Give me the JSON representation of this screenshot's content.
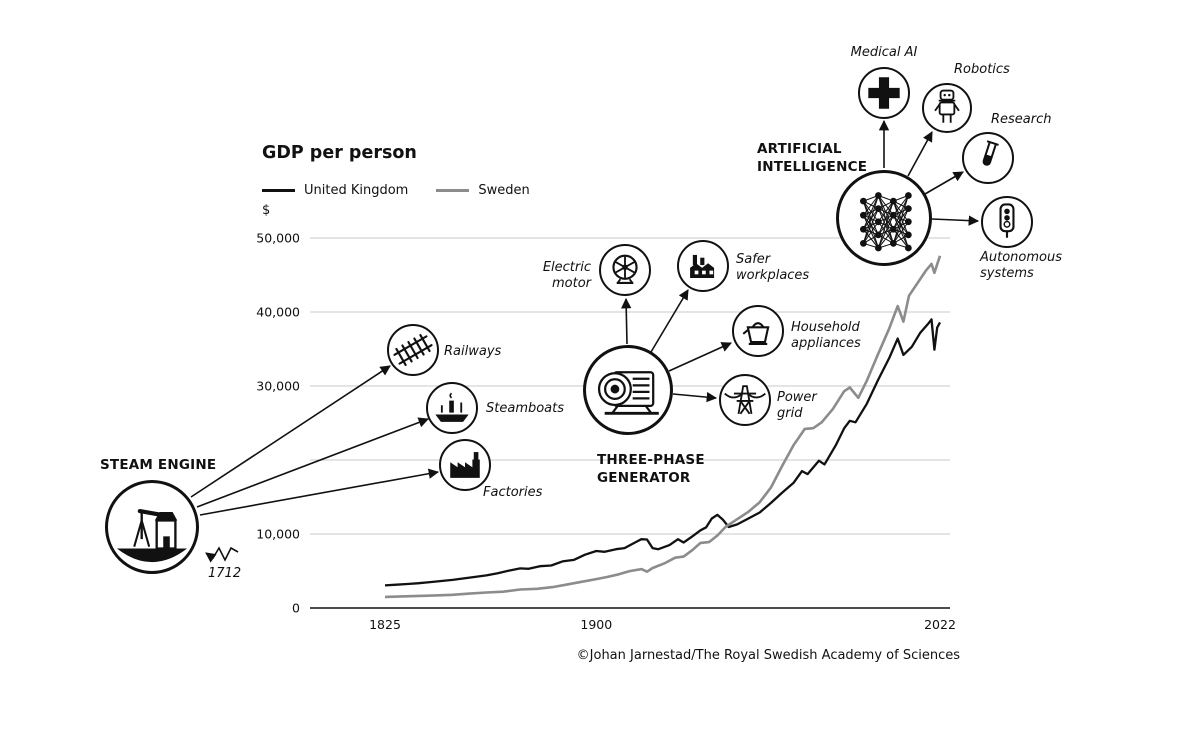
{
  "title": "GDP per person",
  "currency_label": "$",
  "footer": "©Johan Jarnestad/The Royal Swedish Academy of Sciences",
  "legend": [
    {
      "label": "United Kingdom",
      "color": "#111111"
    },
    {
      "label": "Sweden",
      "color": "#8c8c8c"
    }
  ],
  "annotations": {
    "steam_engine": {
      "title": "STEAM ENGINE",
      "year": "1712",
      "railways": "Railways",
      "steamboats": "Steamboats",
      "factories": "Factories"
    },
    "generator": {
      "title": "THREE-PHASE\nGENERATOR",
      "electric_motor": "Electric\nmotor",
      "safer_workplaces": "Safer\nworkplaces",
      "household_appliances": "Household\nappliances",
      "power_grid": "Power\ngrid"
    },
    "ai": {
      "title": "ARTIFICIAL\nINTELLIGENCE",
      "medical_ai": "Medical AI",
      "robotics": "Robotics",
      "research": "Research",
      "autonomous_systems": "Autonomous\nsystems"
    }
  },
  "icons": [
    "steam-engine-icon",
    "railways-icon",
    "steamboats-icon",
    "factories-icon",
    "three-phase-generator-icon",
    "electric-motor-icon",
    "safer-workplaces-icon",
    "household-appliances-icon",
    "power-grid-icon",
    "ai-network-icon",
    "medical-ai-icon",
    "robotics-icon",
    "research-icon",
    "autonomous-systems-icon"
  ],
  "chart_data": {
    "type": "line",
    "title": "GDP per person",
    "ylabel": "$",
    "grid": true,
    "legend_position": "top-left",
    "xlim": [
      1825,
      2022
    ],
    "ylim": [
      0,
      50000
    ],
    "x_ticks": [
      1825,
      1900,
      2022
    ],
    "y_ticks": [
      0,
      10000,
      20000,
      30000,
      40000,
      50000
    ],
    "y_tick_labels": [
      "0",
      "10,000",
      "",
      "30,000",
      "40,000",
      "50,000"
    ],
    "series": [
      {
        "name": "United Kingdom",
        "color": "#111111",
        "points": [
          [
            1825,
            3050
          ],
          [
            1829,
            3150
          ],
          [
            1833,
            3250
          ],
          [
            1837,
            3350
          ],
          [
            1841,
            3500
          ],
          [
            1845,
            3650
          ],
          [
            1849,
            3800
          ],
          [
            1853,
            4000
          ],
          [
            1857,
            4200
          ],
          [
            1861,
            4400
          ],
          [
            1865,
            4700
          ],
          [
            1869,
            5050
          ],
          [
            1873,
            5350
          ],
          [
            1876,
            5300
          ],
          [
            1880,
            5650
          ],
          [
            1884,
            5750
          ],
          [
            1888,
            6300
          ],
          [
            1892,
            6500
          ],
          [
            1896,
            7200
          ],
          [
            1900,
            7700
          ],
          [
            1903,
            7600
          ],
          [
            1907,
            7950
          ],
          [
            1910,
            8100
          ],
          [
            1913,
            8700
          ],
          [
            1916,
            9300
          ],
          [
            1918,
            9250
          ],
          [
            1920,
            8100
          ],
          [
            1922,
            7950
          ],
          [
            1926,
            8500
          ],
          [
            1929,
            9300
          ],
          [
            1931,
            8850
          ],
          [
            1934,
            9650
          ],
          [
            1937,
            10500
          ],
          [
            1939,
            10900
          ],
          [
            1941,
            12100
          ],
          [
            1943,
            12600
          ],
          [
            1945,
            11900
          ],
          [
            1947,
            10950
          ],
          [
            1950,
            11300
          ],
          [
            1954,
            12100
          ],
          [
            1958,
            12900
          ],
          [
            1962,
            14200
          ],
          [
            1966,
            15600
          ],
          [
            1970,
            16900
          ],
          [
            1973,
            18500
          ],
          [
            1975,
            18100
          ],
          [
            1979,
            19900
          ],
          [
            1981,
            19400
          ],
          [
            1985,
            22000
          ],
          [
            1988,
            24300
          ],
          [
            1990,
            25300
          ],
          [
            1992,
            25100
          ],
          [
            1996,
            27600
          ],
          [
            2000,
            30800
          ],
          [
            2004,
            33800
          ],
          [
            2007,
            36400
          ],
          [
            2009,
            34200
          ],
          [
            2012,
            35300
          ],
          [
            2015,
            37200
          ],
          [
            2018,
            38500
          ],
          [
            2019,
            39000
          ],
          [
            2020,
            34900
          ],
          [
            2021,
            37900
          ],
          [
            2022,
            38600
          ]
        ]
      },
      {
        "name": "Sweden",
        "color": "#8c8c8c",
        "points": [
          [
            1825,
            1500
          ],
          [
            1831,
            1570
          ],
          [
            1837,
            1640
          ],
          [
            1843,
            1700
          ],
          [
            1849,
            1780
          ],
          [
            1855,
            1950
          ],
          [
            1861,
            2100
          ],
          [
            1867,
            2200
          ],
          [
            1873,
            2500
          ],
          [
            1879,
            2600
          ],
          [
            1885,
            2850
          ],
          [
            1890,
            3200
          ],
          [
            1895,
            3550
          ],
          [
            1900,
            3900
          ],
          [
            1904,
            4200
          ],
          [
            1908,
            4550
          ],
          [
            1912,
            5000
          ],
          [
            1916,
            5250
          ],
          [
            1918,
            4900
          ],
          [
            1920,
            5400
          ],
          [
            1924,
            6000
          ],
          [
            1928,
            6800
          ],
          [
            1931,
            6950
          ],
          [
            1934,
            7800
          ],
          [
            1937,
            8800
          ],
          [
            1940,
            8900
          ],
          [
            1943,
            9800
          ],
          [
            1946,
            11000
          ],
          [
            1950,
            12000
          ],
          [
            1954,
            13000
          ],
          [
            1958,
            14300
          ],
          [
            1962,
            16300
          ],
          [
            1966,
            19200
          ],
          [
            1970,
            22000
          ],
          [
            1974,
            24200
          ],
          [
            1977,
            24300
          ],
          [
            1980,
            25100
          ],
          [
            1984,
            26900
          ],
          [
            1988,
            29300
          ],
          [
            1990,
            29800
          ],
          [
            1993,
            28400
          ],
          [
            1996,
            30700
          ],
          [
            2000,
            34300
          ],
          [
            2004,
            37800
          ],
          [
            2007,
            40800
          ],
          [
            2009,
            38700
          ],
          [
            2011,
            42200
          ],
          [
            2014,
            43900
          ],
          [
            2017,
            45600
          ],
          [
            2019,
            46500
          ],
          [
            2020,
            45300
          ],
          [
            2022,
            47600
          ]
        ]
      }
    ]
  }
}
